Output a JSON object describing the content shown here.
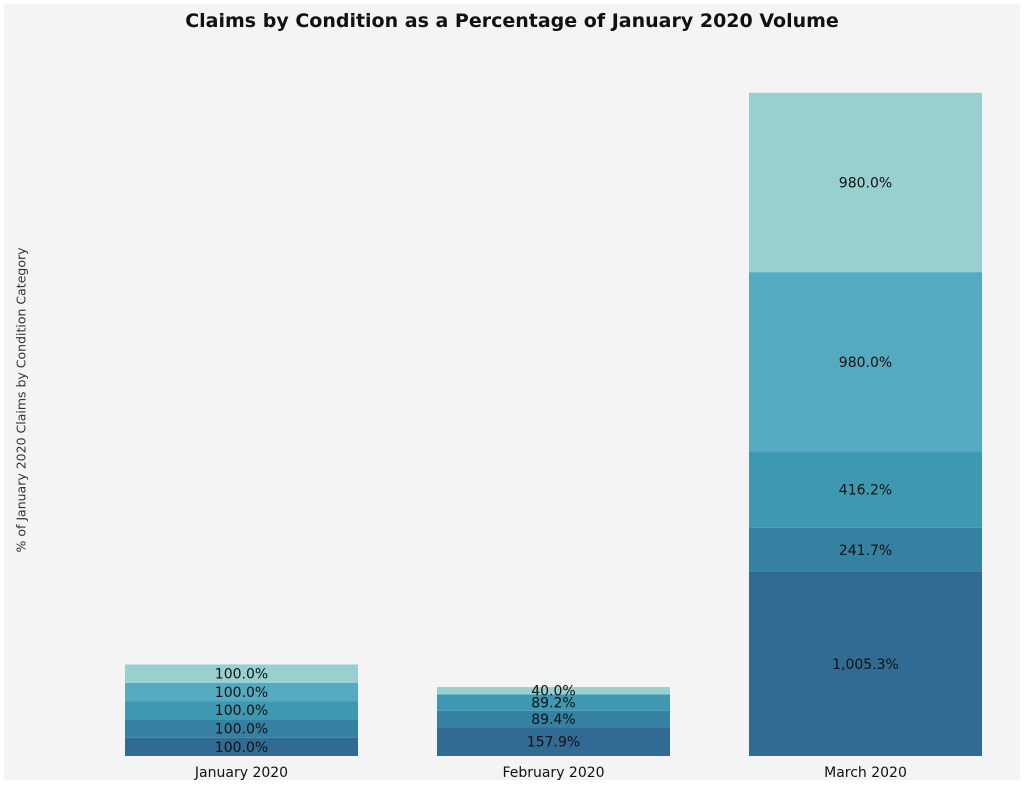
{
  "chart_data": {
    "type": "bar",
    "stacked": true,
    "title": "Claims by Condition as a Percentage of January 2020 Volume",
    "xlabel": "",
    "ylabel": "% of January 2020 Claims by Condition Category",
    "categories": [
      "January 2020",
      "February 2020",
      "March 2020"
    ],
    "series": [
      {
        "values": [
          100.0,
          157.9,
          1005.3
        ],
        "labels": [
          "100.0%",
          "157.9%",
          "1,005.3%"
        ],
        "color": "#316b93"
      },
      {
        "values": [
          100.0,
          89.4,
          241.7
        ],
        "labels": [
          "100.0%",
          "89.4%",
          "241.7%"
        ],
        "color": "#3581a2"
      },
      {
        "values": [
          100.0,
          89.2,
          416.2
        ],
        "labels": [
          "100.0%",
          "89.2%",
          "416.2%"
        ],
        "color": "#3e98b2"
      },
      {
        "values": [
          100.0,
          0.0,
          980.0
        ],
        "labels": [
          "100.0%",
          "",
          "980.0%"
        ],
        "color": "#56aabf"
      },
      {
        "values": [
          100.0,
          40.0,
          980.0
        ],
        "labels": [
          "100.0%",
          "40.0%",
          "980.0%"
        ],
        "color": "#98d0cf"
      }
    ],
    "grid": false,
    "legend": "none"
  }
}
